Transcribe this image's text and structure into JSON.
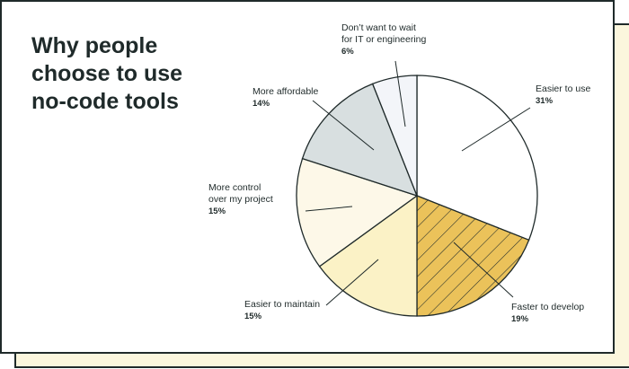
{
  "title_lines": [
    "Why people",
    "choose to use",
    "no-code tools"
  ],
  "chart_data": {
    "type": "pie",
    "title": "Why people choose to use no-code tools",
    "slices": [
      {
        "label_lines": [
          "Easier to use"
        ],
        "pct_text": "31%",
        "value": 31,
        "color": "#ffffff",
        "hatch": false
      },
      {
        "label_lines": [
          "Faster to develop"
        ],
        "pct_text": "19%",
        "value": 19,
        "color": "#ebc25a",
        "hatch": true
      },
      {
        "label_lines": [
          "Easier to maintain"
        ],
        "pct_text": "15%",
        "value": 15,
        "color": "#fbf2c6",
        "hatch": false
      },
      {
        "label_lines": [
          "More control",
          "over my project"
        ],
        "pct_text": "15%",
        "value": 15,
        "color": "#fdf8e8",
        "hatch": false
      },
      {
        "label_lines": [
          "More affordable"
        ],
        "pct_text": "14%",
        "value": 14,
        "color": "#d8dfe0",
        "hatch": false
      },
      {
        "label_lines": [
          "Don’t want to wait",
          "for IT or engineering"
        ],
        "pct_text": "6%",
        "value": 6,
        "color": "#f3f5f9",
        "hatch": false
      }
    ],
    "stroke_color": "#1f2a2a"
  }
}
